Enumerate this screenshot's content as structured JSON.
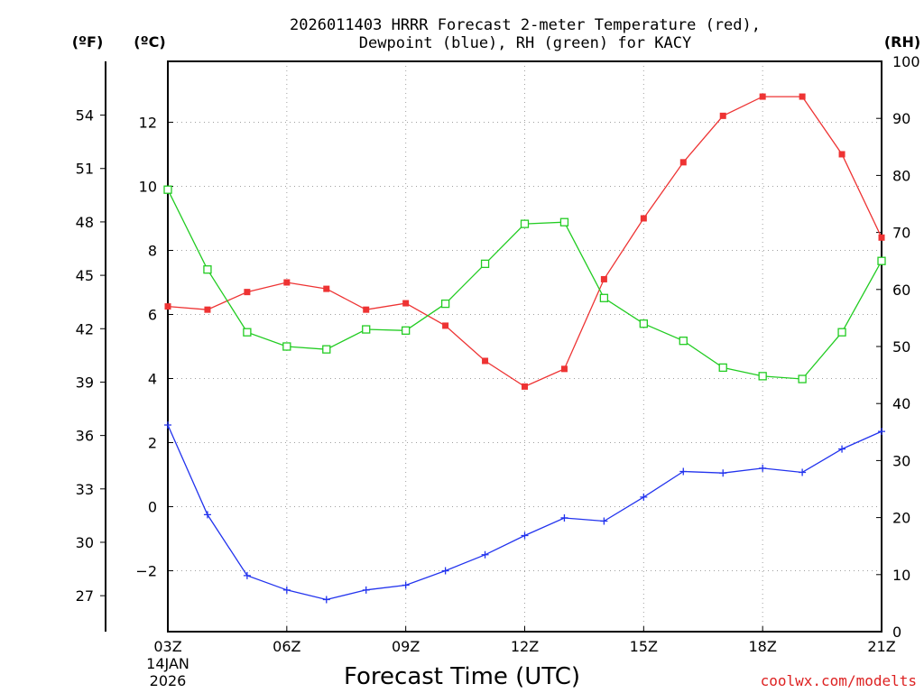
{
  "title_line1": "2026011403 HRRR Forecast 2-meter Temperature (red),",
  "title_line2": "Dewpoint (blue), RH (green) for KACY",
  "units": {
    "fahrenheit": "(ºF)",
    "celsius": "(ºC)",
    "rh": "(RH)"
  },
  "credit": "coolwx.com/modelts",
  "chart_data": {
    "type": "line",
    "title": "2026011403 HRRR Forecast 2-meter Temperature (red), Dewpoint (blue), RH (green) for KACY",
    "xlabel": "Forecast Time (UTC)",
    "date_label": [
      "14JAN",
      "2026"
    ],
    "x_hours": [
      0,
      1,
      2,
      3,
      4,
      5,
      6,
      7,
      8,
      9,
      10,
      11,
      12,
      13,
      14,
      15,
      16,
      17,
      18
    ],
    "x_ticks": [
      {
        "hour": 0,
        "label": "03Z"
      },
      {
        "hour": 3,
        "label": "06Z"
      },
      {
        "hour": 6,
        "label": "09Z"
      },
      {
        "hour": 9,
        "label": "12Z"
      },
      {
        "hour": 12,
        "label": "15Z"
      },
      {
        "hour": 15,
        "label": "18Z"
      },
      {
        "hour": 18,
        "label": "21Z"
      }
    ],
    "ylim_celsius": [
      -3.9,
      13.9
    ],
    "y_ticks_celsius": [
      "12",
      "10",
      "8",
      "6",
      "4",
      "2",
      "0",
      "−2"
    ],
    "y_ticks_celsius_values": [
      12,
      10,
      8,
      6,
      4,
      2,
      0,
      -2
    ],
    "y_ticks_fahrenheit": [
      "54",
      "51",
      "48",
      "45",
      "42",
      "39",
      "36",
      "33",
      "30",
      "27"
    ],
    "y_ticks_fahrenheit_values": [
      54,
      51,
      48,
      45,
      42,
      39,
      36,
      33,
      30,
      27
    ],
    "ylim_rh": [
      0,
      100
    ],
    "y_ticks_rh": [
      "100",
      "90",
      "80",
      "70",
      "60",
      "50",
      "40",
      "30",
      "20",
      "10",
      "0"
    ],
    "y_ticks_rh_values": [
      100,
      90,
      80,
      70,
      60,
      50,
      40,
      30,
      20,
      10,
      0
    ],
    "series": [
      {
        "name": "Temperature",
        "axis": "celsius",
        "color": "#ee3333",
        "marker": "filled-square",
        "values": [
          6.25,
          6.15,
          6.7,
          7.0,
          6.8,
          6.15,
          6.35,
          5.65,
          4.55,
          3.75,
          4.3,
          7.1,
          9.0,
          10.75,
          12.2,
          12.8,
          12.8,
          11.0,
          8.4
        ]
      },
      {
        "name": "Dewpoint",
        "axis": "celsius",
        "color": "#2233ee",
        "marker": "plus",
        "values": [
          2.55,
          -0.25,
          -2.15,
          -2.6,
          -2.9,
          -2.6,
          -2.45,
          -2.0,
          -1.5,
          -0.9,
          -0.35,
          -0.45,
          0.3,
          1.1,
          1.05,
          1.2,
          1.07,
          1.8,
          2.35
        ]
      },
      {
        "name": "Relative Humidity",
        "axis": "rh",
        "color": "#22cc22",
        "marker": "open-square",
        "values": [
          77.5,
          63.5,
          52.5,
          50.0,
          49.5,
          53.0,
          52.8,
          57.5,
          64.5,
          71.5,
          71.8,
          58.5,
          54.0,
          51.0,
          46.3,
          44.8,
          44.3,
          52.5,
          65.0
        ]
      }
    ]
  }
}
